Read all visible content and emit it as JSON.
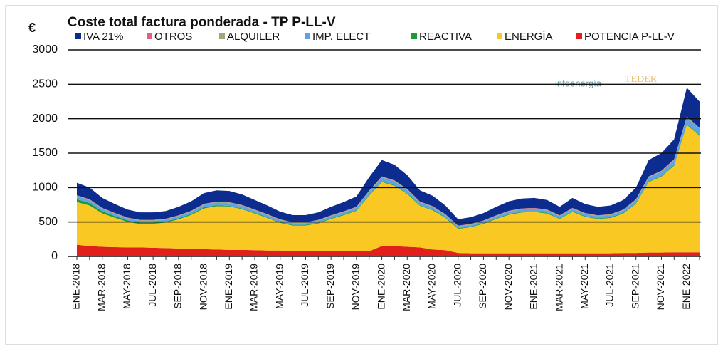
{
  "chart_data": {
    "type": "stacked_area",
    "title": "Coste total factura ponderada - TP P-LL-V",
    "y_label": "€",
    "logo_texts": [
      "infoenergía",
      "TEDER"
    ],
    "categories": [
      "ENE-2018",
      null,
      "MAR-2018",
      null,
      "MAY-2018",
      null,
      "JUL-2018",
      null,
      "SEP-2018",
      null,
      "NOV-2018",
      null,
      "ENE-2019",
      null,
      "MAR-2019",
      null,
      "MAY-2019",
      null,
      "JUL-2019",
      null,
      "SEP-2019",
      null,
      "NOV-2019",
      null,
      "ENE-2020",
      null,
      "MAR-2020",
      null,
      "MAY-2020",
      null,
      "JUL-2020",
      null,
      "SEP-2020",
      null,
      "NOV-2020",
      null,
      "ENE-2021",
      null,
      "MAR-2021",
      null,
      "MAY-2021",
      null,
      "JUL-2021",
      null,
      "SEP-2021",
      null,
      "NOV-2021",
      null,
      "ENE-2022",
      null
    ],
    "series": [
      {
        "name": "IVA 21%",
        "color": "#0c2d8f",
        "values": [
          182,
          170,
          145,
          129,
          116,
          109,
          109,
          112,
          122,
          136,
          156,
          163,
          162,
          153,
          139,
          126,
          111,
          102,
          102,
          109,
          122,
          134,
          148,
          196,
          238,
          226,
          201,
          163,
          150,
          126,
          92,
          97,
          107,
          122,
          136,
          143,
          145,
          139,
          122,
          145,
          129,
          122,
          126,
          139,
          170,
          238,
          255,
          289,
          417,
          383
        ]
      },
      {
        "name": "OTROS",
        "color": "#e0607e",
        "values": [
          5,
          5,
          5,
          5,
          5,
          5,
          5,
          5,
          5,
          5,
          5,
          5,
          5,
          5,
          5,
          5,
          5,
          5,
          5,
          5,
          5,
          5,
          5,
          5,
          5,
          5,
          5,
          5,
          5,
          5,
          5,
          5,
          5,
          5,
          5,
          5,
          5,
          5,
          5,
          5,
          5,
          5,
          5,
          5,
          5,
          5,
          5,
          5,
          5,
          5
        ]
      },
      {
        "name": "ALQUILER",
        "color": "#9aaa7a",
        "values": [
          10,
          10,
          10,
          10,
          10,
          10,
          10,
          10,
          10,
          10,
          10,
          10,
          10,
          10,
          10,
          10,
          10,
          10,
          10,
          10,
          10,
          10,
          10,
          10,
          10,
          10,
          10,
          10,
          10,
          10,
          10,
          10,
          10,
          10,
          10,
          10,
          10,
          10,
          10,
          10,
          10,
          10,
          10,
          10,
          10,
          10,
          10,
          10,
          10,
          10
        ]
      },
      {
        "name": "IMP. ELECT",
        "color": "#5fa3e3",
        "values": [
          43,
          40,
          34,
          30,
          27,
          26,
          26,
          26,
          29,
          32,
          37,
          38,
          38,
          36,
          33,
          30,
          26,
          24,
          24,
          26,
          29,
          32,
          35,
          46,
          56,
          53,
          47,
          38,
          35,
          30,
          22,
          23,
          25,
          29,
          32,
          34,
          34,
          33,
          29,
          34,
          30,
          29,
          30,
          33,
          40,
          56,
          60,
          68,
          98,
          90
        ]
      },
      {
        "name": "REACTIVA",
        "color": "#1a9a3a",
        "values": [
          40,
          35,
          30,
          25,
          20,
          20,
          15,
          15,
          15,
          15,
          15,
          15,
          10,
          10,
          10,
          10,
          10,
          10,
          10,
          10,
          10,
          10,
          10,
          10,
          10,
          10,
          10,
          10,
          10,
          10,
          10,
          10,
          10,
          10,
          10,
          10,
          10,
          10,
          10,
          10,
          10,
          10,
          10,
          10,
          10,
          10,
          10,
          10,
          10,
          10
        ]
      },
      {
        "name": "ENERGÍA",
        "color": "#f9c822",
        "values": [
          620,
          590,
          486,
          426,
          372,
          340,
          350,
          372,
          424,
          492,
          592,
          629,
          630,
          591,
          533,
          474,
          403,
          369,
          369,
          400,
          464,
          524,
          587,
          808,
          931,
          876,
          767,
          604,
          570,
          469,
          351,
          380,
          428,
          499,
          562,
          593,
          601,
          578,
          499,
          601,
          531,
          499,
          514,
          573,
          715,
          1026,
          1105,
          1258,
          1850,
          1692
        ]
      },
      {
        "name": "POTENCIA P-LL-V",
        "color": "#e2201b",
        "values": [
          170,
          150,
          140,
          135,
          130,
          130,
          125,
          120,
          115,
          110,
          105,
          100,
          95,
          95,
          90,
          85,
          85,
          80,
          80,
          80,
          80,
          75,
          75,
          75,
          150,
          150,
          140,
          130,
          100,
          90,
          50,
          45,
          45,
          45,
          45,
          45,
          45,
          45,
          45,
          45,
          45,
          45,
          45,
          50,
          50,
          55,
          55,
          60,
          60,
          60
        ]
      }
    ],
    "ylim": [
      0,
      3000
    ],
    "yticks": [
      0,
      500,
      1000,
      1500,
      2000,
      2500,
      3000
    ],
    "grid": true
  }
}
